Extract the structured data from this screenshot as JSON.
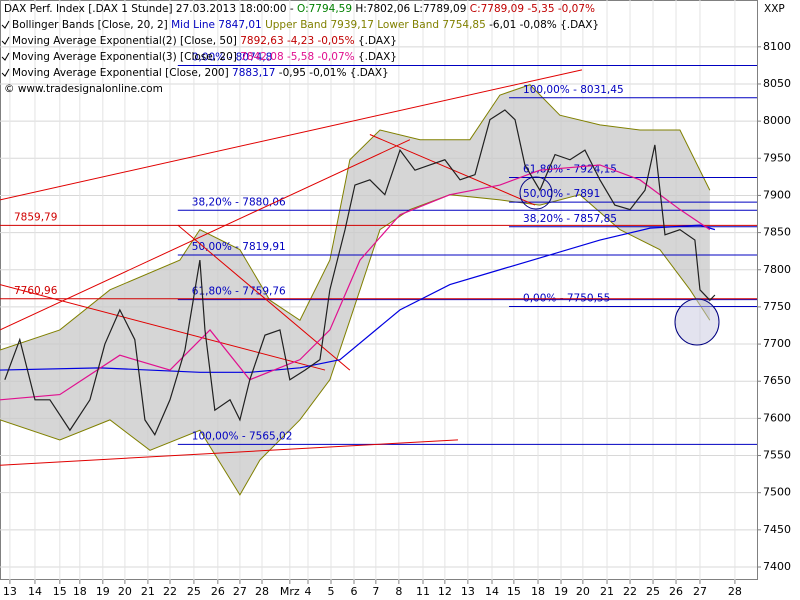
{
  "chart_data": {
    "type": "line",
    "corner_label": "XXP",
    "header": [
      [
        {
          "text": "DAX Perf. Index [.DAX  1 Stunde] 27.03.2013 18:00:00 - ",
          "color": "#000000"
        },
        {
          "text": "O:7794,59",
          "color": "#008000"
        },
        {
          "text": " H:7802,06 L:7789,09 ",
          "color": "#000000"
        },
        {
          "text": "C:7789,09 -5,35 -0,07%",
          "color": "#c00000"
        }
      ],
      [
        {
          "text": "Bollinger Bands [Close, 20, 2] ",
          "color": "#000000"
        },
        {
          "text": "Mid Line 7847,01 ",
          "color": "#0000c0"
        },
        {
          "text": "Upper Band 7939,17 Lower Band 7754,85 ",
          "color": "#808000"
        },
        {
          "text": "-6,01 -0,08% {.DAX}",
          "color": "#000000"
        }
      ],
      [
        {
          "text": "Moving Average Exponential(2) [Close, 50] ",
          "color": "#000000"
        },
        {
          "text": "7892,63 -4,23 -0,05%",
          "color": "#c00000"
        },
        {
          "text": " {.DAX}",
          "color": "#000000"
        }
      ],
      [
        {
          "text": "Moving Average Exponential(3) [Close, 20] ",
          "color": "#000000"
        },
        {
          "text": "7842,08 -5,58 -0,07%",
          "color": "#e0108f"
        },
        {
          "text": " {.DAX}",
          "color": "#000000"
        }
      ],
      [
        {
          "text": "Moving Average Exponential [Close, 200] ",
          "color": "#000000"
        },
        {
          "text": "7883,17",
          "color": "#0000c0"
        },
        {
          "text": " -0,95 -0,01% {.DAX}",
          "color": "#000000"
        }
      ],
      [
        {
          "text": "© www.tradesignalonline.com",
          "color": "#000000"
        }
      ]
    ],
    "xlim": [
      -0.43,
      32.48
    ],
    "ylim": [
      7382.5,
      8163
    ],
    "grid": true,
    "yticks": [
      7400,
      7450,
      7500,
      7550,
      7600,
      7650,
      7700,
      7750,
      7800,
      7850,
      7900,
      7950,
      8000,
      8050,
      8100
    ],
    "xticks": [
      {
        "value": 0,
        "label": "13"
      },
      {
        "value": 1.09,
        "label": "14"
      },
      {
        "value": 2.17,
        "label": "15"
      },
      {
        "value": 3.04,
        "label": "18"
      },
      {
        "value": 4.04,
        "label": "19"
      },
      {
        "value": 5,
        "label": "20"
      },
      {
        "value": 6,
        "label": "21"
      },
      {
        "value": 6.96,
        "label": "22"
      },
      {
        "value": 8,
        "label": "25"
      },
      {
        "value": 9.04,
        "label": "26"
      },
      {
        "value": 10,
        "label": "27"
      },
      {
        "value": 10.96,
        "label": "28"
      },
      {
        "value": 12.17,
        "label": "Mrz"
      },
      {
        "value": 12.96,
        "label": "4"
      },
      {
        "value": 13.96,
        "label": "5"
      },
      {
        "value": 14.96,
        "label": "6"
      },
      {
        "value": 15.91,
        "label": "7"
      },
      {
        "value": 16.91,
        "label": "8"
      },
      {
        "value": 17.96,
        "label": "11"
      },
      {
        "value": 18.91,
        "label": "12"
      },
      {
        "value": 19.91,
        "label": "13"
      },
      {
        "value": 20.96,
        "label": "14"
      },
      {
        "value": 21.91,
        "label": "15"
      },
      {
        "value": 22.96,
        "label": "18"
      },
      {
        "value": 23.96,
        "label": "19"
      },
      {
        "value": 24.91,
        "label": "20"
      },
      {
        "value": 25.96,
        "label": "21"
      },
      {
        "value": 26.96,
        "label": "22"
      },
      {
        "value": 27.96,
        "label": "25"
      },
      {
        "value": 28.96,
        "label": "26"
      },
      {
        "value": 30,
        "label": "27"
      },
      {
        "value": 31.52,
        "label": "28"
      }
    ],
    "series": [
      {
        "role": "band",
        "color": "#808000",
        "x": [
          -0.43,
          2.17,
          4.35,
          7.39,
          8.26,
          10,
          11.3,
          12.61,
          13.91,
          14.78,
          16.09,
          17.83,
          20,
          21.3,
          22.61,
          23.91,
          25.65,
          27.39,
          29.13,
          30.43
        ],
        "values": [
          7692,
          7719,
          7773,
          7813,
          7854,
          7827,
          7759,
          7732,
          7813,
          7948,
          7988,
          7975,
          7975,
          8035,
          8049,
          8008,
          7995,
          7988,
          7988,
          7907
        ]
      },
      {
        "role": "band",
        "color": "#808000",
        "x": [
          -0.43,
          2.17,
          4.35,
          6.09,
          8.26,
          10,
          10.87,
          12.61,
          13.91,
          14.78,
          16.09,
          17.39,
          19.13,
          21.3,
          23.04,
          24.78,
          26.52,
          28.26,
          29.57,
          30.43
        ],
        "values": [
          7598,
          7571,
          7598,
          7557,
          7584,
          7497,
          7544,
          7598,
          7652,
          7732,
          7854,
          7881,
          7901,
          7894,
          7887,
          7901,
          7854,
          7827,
          7773,
          7732
        ]
      },
      {
        "color": "#0000e0",
        "x": [
          -0.43,
          3.91,
          8.26,
          10.43,
          12.61,
          14.35,
          16.96,
          19.13,
          21.3,
          23.48,
          25.65,
          27.83,
          30,
          30.65
        ],
        "values": [
          7665,
          7668,
          7662,
          7662,
          7668,
          7679,
          7746,
          7780,
          7800,
          7820,
          7840,
          7856,
          7860,
          7854
        ]
      },
      {
        "color": "#e0108f",
        "x": [
          -0.43,
          2.17,
          4.78,
          6.96,
          8.7,
          10.43,
          12.61,
          13.91,
          15.22,
          16.96,
          19.13,
          21.3,
          23.04,
          25.65,
          27.39,
          29.13,
          30.43
        ],
        "values": [
          7625,
          7632,
          7685,
          7665,
          7719,
          7652,
          7679,
          7719,
          7813,
          7874,
          7901,
          7914,
          7934,
          7941,
          7921,
          7881,
          7854
        ]
      },
      {
        "color": "#202020",
        "x": [
          -0.22,
          0.43,
          1.09,
          1.74,
          2.61,
          3.48,
          4.13,
          4.78,
          5.43,
          5.87,
          6.3,
          6.96,
          7.61,
          8.26,
          8.48,
          8.91,
          9.57,
          10,
          10.43,
          11.09,
          11.74,
          12.17,
          12.83,
          13.48,
          13.91,
          14.57,
          15,
          15.65,
          16.3,
          16.96,
          17.61,
          18.26,
          18.91,
          19.57,
          20.22,
          20.87,
          21.52,
          21.96,
          22.39,
          23.04,
          23.7,
          24.35,
          25,
          25.65,
          26.3,
          26.96,
          27.61,
          28.04,
          28.48,
          29.13,
          29.78,
          30,
          30.43,
          30.65
        ],
        "values": [
          7652,
          7706,
          7625,
          7625,
          7584,
          7625,
          7700,
          7746,
          7706,
          7598,
          7578,
          7625,
          7692,
          7813,
          7719,
          7611,
          7625,
          7598,
          7652,
          7712,
          7719,
          7652,
          7665,
          7679,
          7773,
          7854,
          7914,
          7921,
          7901,
          7961,
          7934,
          7941,
          7948,
          7921,
          7928,
          8002,
          8015,
          8002,
          7941,
          7907,
          7955,
          7948,
          7961,
          7921,
          7887,
          7881,
          7907,
          7968,
          7847,
          7854,
          7840,
          7773,
          7759,
          7766
        ]
      }
    ],
    "level_lines": [
      {
        "label": "0,00% - 8074,8",
        "value": 8074.8,
        "x_start": 7.3,
        "color": "#0000c0"
      },
      {
        "label": "38,20% - 7880,06",
        "value": 7880.06,
        "x_start": 7.3,
        "color": "#0000c0"
      },
      {
        "label": "50,00% - 7819,91",
        "value": 7819.91,
        "x_start": 7.3,
        "color": "#0000c0"
      },
      {
        "label": "61,80% - 7759,76",
        "value": 7759.76,
        "x_start": 7.3,
        "color": "#0000c0"
      },
      {
        "label": "100,00% - 7565,02",
        "value": 7565.02,
        "x_start": 7.3,
        "color": "#0000c0"
      },
      {
        "label": "100,00% - 8031,45",
        "value": 8031.45,
        "x_start": 21.7,
        "color": "#0000c0"
      },
      {
        "label": "61,80% - 7924,15",
        "value": 7924.15,
        "x_start": 21.7,
        "color": "#0000c0"
      },
      {
        "label": "50,00% - 7891",
        "value": 7891,
        "x_start": 21.7,
        "color": "#0000c0"
      },
      {
        "label": "38,20% - 7857,85",
        "value": 7857.85,
        "x_start": 21.7,
        "color": "#0000c0"
      },
      {
        "label": "0,00% - 7750,55",
        "value": 7750.55,
        "x_start": 21.7,
        "color": "#0000c0"
      },
      {
        "label": "7859,79",
        "value": 7859.79,
        "x_start": -0.43,
        "color": "#d00000"
      },
      {
        "label": "7760,96",
        "value": 7760.96,
        "x_start": -0.43,
        "color": "#d00000"
      }
    ],
    "trend_lines": [
      {
        "x": [
          -0.43,
          19.48
        ],
        "values": [
          7537,
          7571
        ]
      },
      {
        "x": [
          -0.43,
          24.87
        ],
        "values": [
          7894,
          8069
        ]
      },
      {
        "x": [
          -0.43,
          17.39
        ],
        "values": [
          7719,
          7975
        ]
      },
      {
        "x": [
          -0.43,
          13.7
        ],
        "values": [
          7780,
          7665
        ]
      },
      {
        "x": [
          7.3,
          14.78
        ],
        "values": [
          7860,
          7665
        ]
      },
      {
        "x": [
          15.65,
          22.83
        ],
        "values": [
          7982,
          7887
        ]
      }
    ],
    "trend_color": "#e00000"
  }
}
